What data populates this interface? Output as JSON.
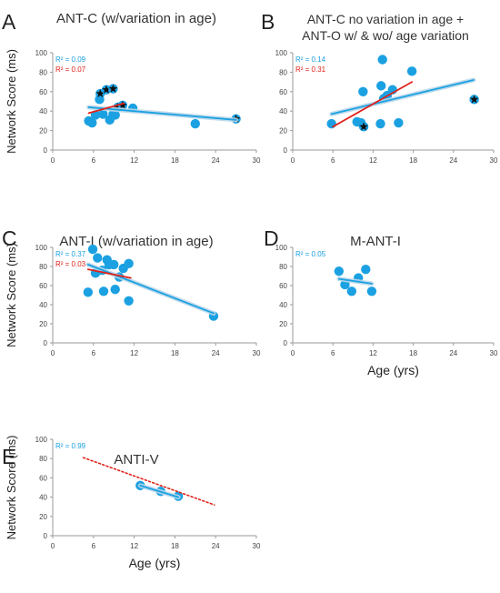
{
  "panels": [
    {
      "letter": "A",
      "chart_data": {
        "type": "scatter",
        "title": "ANT-C (w/variation in age)",
        "ylabel": "Network Score (ms)",
        "xlabel": "",
        "xlim": [
          0,
          30
        ],
        "ylim": [
          0,
          100
        ],
        "xticks": [
          0,
          6,
          12,
          18,
          24,
          30
        ],
        "yticks": [
          0,
          20,
          40,
          60,
          80,
          100
        ],
        "grid": false,
        "annotations": [
          {
            "text": "R² = 0.09",
            "color": "#1ba1e2"
          },
          {
            "text": "R² = 0.07",
            "color": "#e0231b"
          }
        ],
        "points": [
          {
            "x": 5.3,
            "y": 30
          },
          {
            "x": 5.8,
            "y": 28
          },
          {
            "x": 6.3,
            "y": 36
          },
          {
            "x": 6.9,
            "y": 52
          },
          {
            "x": 7.4,
            "y": 37
          },
          {
            "x": 8.4,
            "y": 31
          },
          {
            "x": 8.9,
            "y": 37
          },
          {
            "x": 9.2,
            "y": 36
          },
          {
            "x": 11.8,
            "y": 43
          },
          {
            "x": 21.0,
            "y": 27
          }
        ],
        "starred_points": [
          {
            "x": 7.0,
            "y": 58
          },
          {
            "x": 7.9,
            "y": 62
          },
          {
            "x": 8.9,
            "y": 63
          },
          {
            "x": 9.6,
            "y": 44
          },
          {
            "x": 10.3,
            "y": 46
          },
          {
            "x": 27.0,
            "y": 32
          }
        ],
        "trendlines": [
          {
            "color": "#1ba1e2",
            "x": [
              5.3,
              27.0
            ],
            "y": [
              44,
              31
            ]
          },
          {
            "color": "#e0231b",
            "x": [
              5.3,
              10.5
            ],
            "y": [
              38,
              48
            ]
          }
        ]
      }
    },
    {
      "letter": "B",
      "chart_data": {
        "type": "scatter",
        "title": "ANT-C no variation in age + ANT-O w/ & wo/ age variation",
        "title_lines": [
          "ANT-C no variation in age +",
          "ANT-O w/ & wo/ age variation"
        ],
        "ylabel": "",
        "xlabel": "",
        "xlim": [
          0,
          30
        ],
        "ylim": [
          0,
          100
        ],
        "xticks": [
          0,
          6,
          12,
          18,
          24,
          30
        ],
        "yticks": [
          0,
          20,
          40,
          60,
          80,
          100
        ],
        "grid": false,
        "annotations": [
          {
            "text": "R² = 0.14",
            "color": "#1ba1e2"
          },
          {
            "text": "R² = 0.31",
            "color": "#e0231b"
          }
        ],
        "points": [
          {
            "x": 5.8,
            "y": 27
          },
          {
            "x": 9.6,
            "y": 29
          },
          {
            "x": 10.2,
            "y": 28
          },
          {
            "x": 10.5,
            "y": 60
          },
          {
            "x": 13.1,
            "y": 27
          },
          {
            "x": 13.2,
            "y": 66
          },
          {
            "x": 13.4,
            "y": 93
          },
          {
            "x": 13.6,
            "y": 53
          },
          {
            "x": 14.1,
            "y": 56
          },
          {
            "x": 14.9,
            "y": 62
          },
          {
            "x": 15.8,
            "y": 28
          },
          {
            "x": 17.8,
            "y": 81
          }
        ],
        "starred_points": [
          {
            "x": 10.6,
            "y": 24
          },
          {
            "x": 27.1,
            "y": 52
          }
        ],
        "trendlines": [
          {
            "color": "#1ba1e2",
            "x": [
              5.8,
              27.0
            ],
            "y": [
              37,
              72
            ]
          },
          {
            "color": "#e0231b",
            "x": [
              6.0,
              17.8
            ],
            "y": [
              24,
              70
            ]
          }
        ]
      }
    },
    {
      "letter": "C",
      "chart_data": {
        "type": "scatter",
        "title": "ANT-I (w/variation in age)",
        "ylabel": "Network Score (ms)",
        "xlabel": "",
        "xlim": [
          0,
          30
        ],
        "ylim": [
          0,
          100
        ],
        "xticks": [
          0,
          6,
          12,
          18,
          24,
          30
        ],
        "yticks": [
          0,
          20,
          40,
          60,
          80,
          100
        ],
        "grid": false,
        "annotations": [
          {
            "text": "R² = 0.37",
            "color": "#1ba1e2"
          },
          {
            "text": "R² = 0.03",
            "color": "#e0231b"
          }
        ],
        "points": [
          {
            "x": 5.2,
            "y": 53
          },
          {
            "x": 5.9,
            "y": 98
          },
          {
            "x": 6.3,
            "y": 73
          },
          {
            "x": 6.6,
            "y": 89
          },
          {
            "x": 7.3,
            "y": 76
          },
          {
            "x": 7.5,
            "y": 54
          },
          {
            "x": 8.0,
            "y": 87
          },
          {
            "x": 8.3,
            "y": 82
          },
          {
            "x": 9.0,
            "y": 82
          },
          {
            "x": 9.2,
            "y": 56
          },
          {
            "x": 9.8,
            "y": 69
          },
          {
            "x": 10.4,
            "y": 78
          },
          {
            "x": 11.2,
            "y": 83
          },
          {
            "x": 11.2,
            "y": 44
          },
          {
            "x": 23.7,
            "y": 28
          }
        ],
        "starred_points": [],
        "trendlines": [
          {
            "color": "#1ba1e2",
            "x": [
              5.2,
              23.7
            ],
            "y": [
              82,
              31
            ]
          },
          {
            "color": "#e0231b",
            "x": [
              5.2,
              11.5
            ],
            "y": [
              77,
              68
            ]
          }
        ]
      }
    },
    {
      "letter": "D",
      "chart_data": {
        "type": "scatter",
        "title": "M-ANT-I",
        "ylabel": "",
        "xlabel": "Age (yrs)",
        "xlim": [
          0,
          30
        ],
        "ylim": [
          0,
          100
        ],
        "xticks": [
          0,
          6,
          12,
          18,
          24,
          30
        ],
        "yticks": [
          0,
          20,
          40,
          60,
          80,
          100
        ],
        "grid": false,
        "annotations": [
          {
            "text": "R² = 0.05",
            "color": "#1ba1e2"
          }
        ],
        "points": [
          {
            "x": 6.9,
            "y": 75
          },
          {
            "x": 7.8,
            "y": 61
          },
          {
            "x": 8.8,
            "y": 54
          },
          {
            "x": 9.8,
            "y": 68
          },
          {
            "x": 10.9,
            "y": 77
          },
          {
            "x": 11.8,
            "y": 54
          }
        ],
        "starred_points": [],
        "trendlines": [
          {
            "color": "#1ba1e2",
            "x": [
              6.9,
              11.8
            ],
            "y": [
              67,
              62
            ]
          }
        ]
      }
    },
    {
      "letter": "E",
      "chart_data": {
        "type": "scatter",
        "title": "ANTI-V",
        "ylabel": "Network Score (ms)",
        "xlabel": "Age (yrs)",
        "xlim": [
          0,
          30
        ],
        "ylim": [
          0,
          100
        ],
        "xticks": [
          0,
          6,
          12,
          18,
          24,
          30
        ],
        "yticks": [
          0,
          20,
          40,
          60,
          80,
          100
        ],
        "grid": false,
        "annotations": [
          {
            "text": "R² = 0.99",
            "color": "#1ba1e2"
          }
        ],
        "points": [
          {
            "x": 12.9,
            "y": 52
          },
          {
            "x": 15.9,
            "y": 46
          },
          {
            "x": 18.5,
            "y": 41
          }
        ],
        "starred_points": [],
        "trendlines": [
          {
            "color": "#1ba1e2",
            "x": [
              12.9,
              18.5
            ],
            "y": [
              52,
              40
            ]
          },
          {
            "color": "#e0231b",
            "dashed": true,
            "x": [
              4.5,
              23.8
            ],
            "y": [
              81,
              32
            ]
          }
        ]
      }
    }
  ],
  "colors": {
    "point": "#1ba1e2",
    "trend_blue": "#1ba1e2",
    "trend_blue_band": "#bcd9ea",
    "trend_red": "#e0231b",
    "star": "#111111",
    "axis": "#9a9a9a",
    "tick_text": "#444444",
    "title_text": "#333333"
  }
}
